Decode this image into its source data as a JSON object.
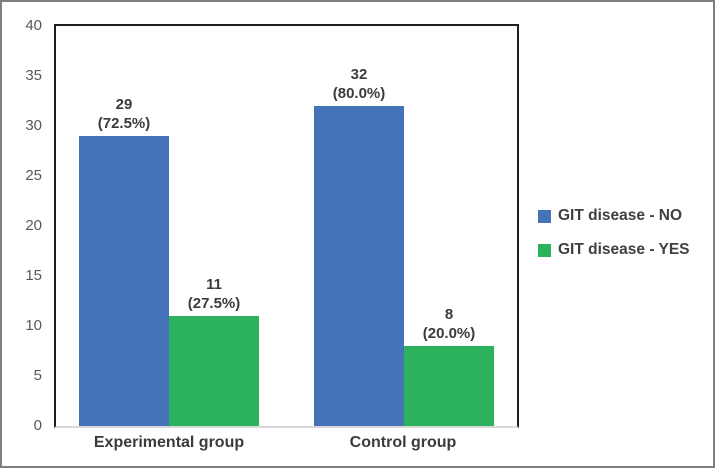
{
  "chart_data": {
    "type": "bar",
    "title": "",
    "xlabel": "",
    "ylabel": "",
    "categories": [
      "Experimental group",
      "Control group"
    ],
    "series": [
      {
        "name": "GIT disease - NO",
        "color": "#4473B7",
        "values": [
          29,
          32
        ],
        "pct_labels": [
          "(72.5%)",
          "(80.0%)"
        ]
      },
      {
        "name": "GIT disease - YES",
        "color": "#2CB15D",
        "values": [
          11,
          8
        ],
        "pct_labels": [
          "(27.5%)",
          "(20.0%)"
        ]
      }
    ],
    "ylim": [
      0,
      40
    ],
    "yticks": [
      0,
      5,
      10,
      15,
      20,
      25,
      30,
      35,
      40
    ],
    "grid": false,
    "legend_position": "right"
  },
  "frame": {
    "border_color": "#7f7f7f",
    "plot_border_color": "#1f1f1f",
    "axis_line_color": "#d9d9d9",
    "tick_label_color": "#595959"
  }
}
